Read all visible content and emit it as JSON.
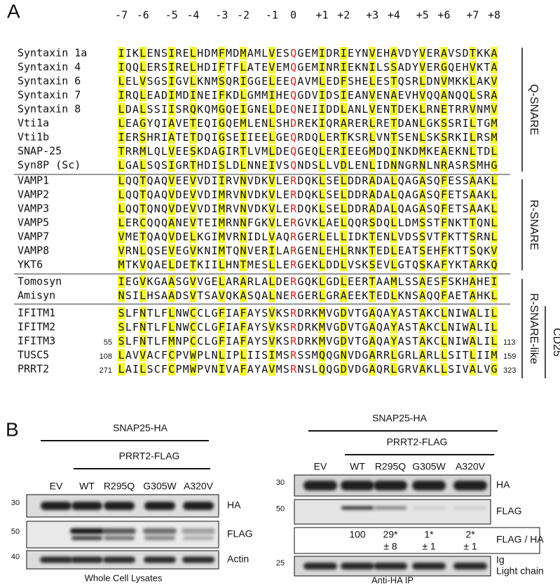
{
  "panel_a": {
    "label": "A",
    "layers": [
      "-7",
      "-6",
      "-5",
      "-4",
      "-3",
      "-2",
      "-1",
      "0",
      "+1",
      "+2",
      "+3",
      "+4",
      "+5",
      "+6",
      "+7",
      "+8"
    ],
    "rows": [
      {
        "name": "Syntaxin 1a",
        "seq": "IIKLENSIRELHDMFMDMAMLVESQGEMIDRIEYNVEHAVDYVERAVSDTKKA"
      },
      {
        "name": "Syntaxin 4",
        "seq": "IQQLERSIRELHDIFTFLATEVEMQGEMINRIEKNILSSADYVERGQEHVKTA"
      },
      {
        "name": "Syntaxin 6",
        "seq": "LELVSGSIGVLKNMSQRIGGELEEQAVMLEDFSHELESTQSRLDNVMKKLAKV"
      },
      {
        "name": "Syntaxin 7",
        "seq": "IRQLEADIMDINEIFKDLGMMIHEQGDVIDSIEANVENAEVHVQQANQQLSRA"
      },
      {
        "name": "Syntaxin 8",
        "seq": "LDALSSIISRQKQMGQEIGNELDEQNEIIDDLANLVENTDEKLRNETRRVNMV"
      },
      {
        "name": "Vti1a",
        "seq": "LEAGYQIAVETEQIGQEMLENLSHDREKIQRARERLRETDANLGKSSRILTGM"
      },
      {
        "name": "Vti1b",
        "seq": "IERSHRIATETDQIGSEIIEELGEQRDQLERTKSRLVNTSENLSKSRKILRSM"
      },
      {
        "name": "SNAP-25",
        "seq": "TRRMLQLVEESKDAGIRTLVMLDEQGEQLERIEEGMDQINKDMKEAEKNLTDL"
      },
      {
        "name": "Syn8P (Sc)",
        "seq": "LGALSQSIGRTHDISLDLNNEIVSQNDSLLVDLENLIDNNGRNLNRASRSMHG"
      },
      {
        "name": "VAMP1",
        "seq": "LQQTQAQVEEVVDIIRVNVDKVLERDQKLSELDDRADALQAGASQFESSAAKL"
      },
      {
        "name": "VAMP2",
        "seq": "LQQTQAQVDEVVDIMRVNVDKVLERDQKLSELDDRADALQAGASQFETSAAKL"
      },
      {
        "name": "VAMP3",
        "seq": "LQQTQNQVDEVVDIMRVNVDKVLERDQKLSELDDRADALQAGASQFETSAAKL"
      },
      {
        "name": "VAMP5",
        "seq": "LERCQQQANEVTEIMRNNFGKVLERGVKLAELQQRSDQLLDMSSTFNKTTQNL"
      },
      {
        "name": "VAMP7",
        "seq": "VMETQAQVDELKGIMVRNIDLVAQRGERLELLIDKTENLVDSSVTFKTTSRNL"
      },
      {
        "name": "VAMP8",
        "seq": "VRNLQSEVEGVKNIMTQNVERILARGENLEHLRNKTEDLEATSEHFKTTSQKV"
      },
      {
        "name": "YKT6",
        "seq": "MTKVQAELDETKIILHNTMESLLERGEKLDDLVSKSEVLGTQSKAFYKTARKQ"
      },
      {
        "name": "Tomosyn",
        "seq": "IEGVKGAASGVVGELARARLALDERGQKLGDLEERTAAMLSSAESFSKHAHEI"
      },
      {
        "name": "Amisyn",
        "seq": "NSILHSAADSVTSAVQKASQALNERGERLGRAEEKTEDLKNSAQQFAETAHKL"
      },
      {
        "name": "IFITM1",
        "seq": "SLFNTLFLNWCCLGFIAFAYSVKSRDRKMVGDVTGAQAYASTAKCLNIWALIL"
      },
      {
        "name": "IFITM2",
        "seq": "SLFNTLFLNWCCLGFIAFAYSVKSRDRKMVGDVTGAQAYASTAKCLNIWALIL"
      },
      {
        "name": "IFITM3",
        "seq": "SLFNTLFMNPCCLGFIAFAYSVKSRDRKMVGDVTGAQAYASTAKCLNIWALIL",
        "start": 55,
        "end": 113
      },
      {
        "name": "TUSC5",
        "seq": "LAVVACFCPVWPLNLIPLIISIMSRSSMQQGNVDGARRLGRLARLLSITLIIM",
        "start": 108,
        "end": 159
      },
      {
        "name": "PRRT2",
        "seq": "LAILSCFCPMWPVNIVAFAYAVMSRNSLQQGDVDGAQRLGRVAKLLSIVALVG",
        "start": 271,
        "end": 323
      }
    ],
    "groups": [
      "Q-SNARE",
      "R-SNARE",
      "R-SNARE-like",
      "CD25"
    ]
  },
  "panel_b": {
    "label": "B",
    "lysate": {
      "bait": "SNAP25-HA",
      "prey": "PRRT2-FLAG",
      "lanes": [
        "EV",
        "WT",
        "R295Q",
        "G305W",
        "A320V"
      ],
      "markers": [
        30,
        50,
        40
      ],
      "blots": [
        "HA",
        "FLAG",
        "Actin"
      ],
      "caption": "Whole Cell Lysates"
    },
    "ip": {
      "bait": "SNAP25-HA",
      "prey": "PRRT2-FLAG",
      "lanes": [
        "EV",
        "WT",
        "R295Q",
        "G305W",
        "A320V"
      ],
      "markers": [
        30,
        50,
        25
      ],
      "blots": [
        "HA",
        "FLAG"
      ],
      "ratio_label": "FLAG / HA",
      "quant": [
        {
          "mean": "100"
        },
        {
          "mean": "29*",
          "sd": "± 8"
        },
        {
          "mean": "1*",
          "sd": "± 1"
        },
        {
          "mean": "2*",
          "sd": "± 1"
        }
      ],
      "ig": [
        "Ig",
        "Light chain"
      ],
      "caption": "Anti-HA IP"
    }
  }
}
